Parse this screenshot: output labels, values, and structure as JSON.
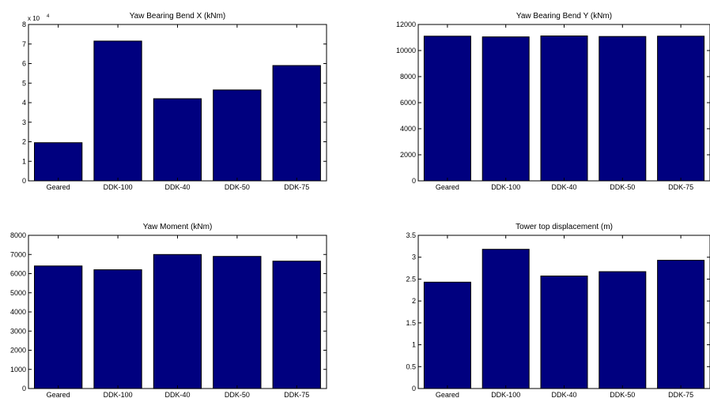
{
  "colors": {
    "bar": "#00007F",
    "axis": "#000000",
    "background": "#FFFFFF"
  },
  "chart_data": [
    {
      "type": "bar",
      "title": "Yaw Bearing Bend X (kNm)",
      "categories": [
        "Geared",
        "DDK-100",
        "DDK-40",
        "DDK-50",
        "DDK-75"
      ],
      "values": [
        19500,
        71500,
        42000,
        46500,
        59000
      ],
      "ylim": [
        0,
        80000
      ],
      "yticks": [
        0,
        10000,
        20000,
        30000,
        40000,
        50000,
        60000,
        70000,
        80000
      ],
      "ytick_labels": [
        "0",
        "1",
        "2",
        "3",
        "4",
        "5",
        "6",
        "7",
        "8"
      ],
      "y_multiplier_base": "x 10",
      "y_multiplier_exp": "4",
      "grid": false,
      "xlabel": "",
      "ylabel": ""
    },
    {
      "type": "bar",
      "title": "Yaw Bearing Bend Y (kNm)",
      "categories": [
        "Geared",
        "DDK-100",
        "DDK-40",
        "DDK-50",
        "DDK-75"
      ],
      "values": [
        11100,
        11050,
        11120,
        11080,
        11100
      ],
      "ylim": [
        0,
        12000
      ],
      "yticks": [
        0,
        2000,
        4000,
        6000,
        8000,
        10000,
        12000
      ],
      "ytick_labels": [
        "0",
        "2000",
        "4000",
        "6000",
        "8000",
        "10000",
        "12000"
      ],
      "grid": false,
      "xlabel": "",
      "ylabel": ""
    },
    {
      "type": "bar",
      "title": "Yaw Moment (kNm)",
      "categories": [
        "Geared",
        "DDK-100",
        "DDK-40",
        "DDK-50",
        "DDK-75"
      ],
      "values": [
        6400,
        6200,
        7000,
        6900,
        6650
      ],
      "ylim": [
        0,
        8000
      ],
      "yticks": [
        0,
        1000,
        2000,
        3000,
        4000,
        5000,
        6000,
        7000,
        8000
      ],
      "ytick_labels": [
        "0",
        "1000",
        "2000",
        "3000",
        "4000",
        "5000",
        "6000",
        "7000",
        "8000"
      ],
      "grid": false,
      "xlabel": "",
      "ylabel": ""
    },
    {
      "type": "bar",
      "title": "Tower top displacement (m)",
      "categories": [
        "Geared",
        "DDK-100",
        "DDK-40",
        "DDK-50",
        "DDK-75"
      ],
      "values": [
        2.43,
        3.18,
        2.57,
        2.67,
        2.93
      ],
      "ylim": [
        0,
        3.5
      ],
      "yticks": [
        0,
        0.5,
        1,
        1.5,
        2,
        2.5,
        3,
        3.5
      ],
      "ytick_labels": [
        "0",
        "0.5",
        "1",
        "1.5",
        "2",
        "2.5",
        "3",
        "3.5"
      ],
      "grid": false,
      "xlabel": "",
      "ylabel": ""
    }
  ]
}
